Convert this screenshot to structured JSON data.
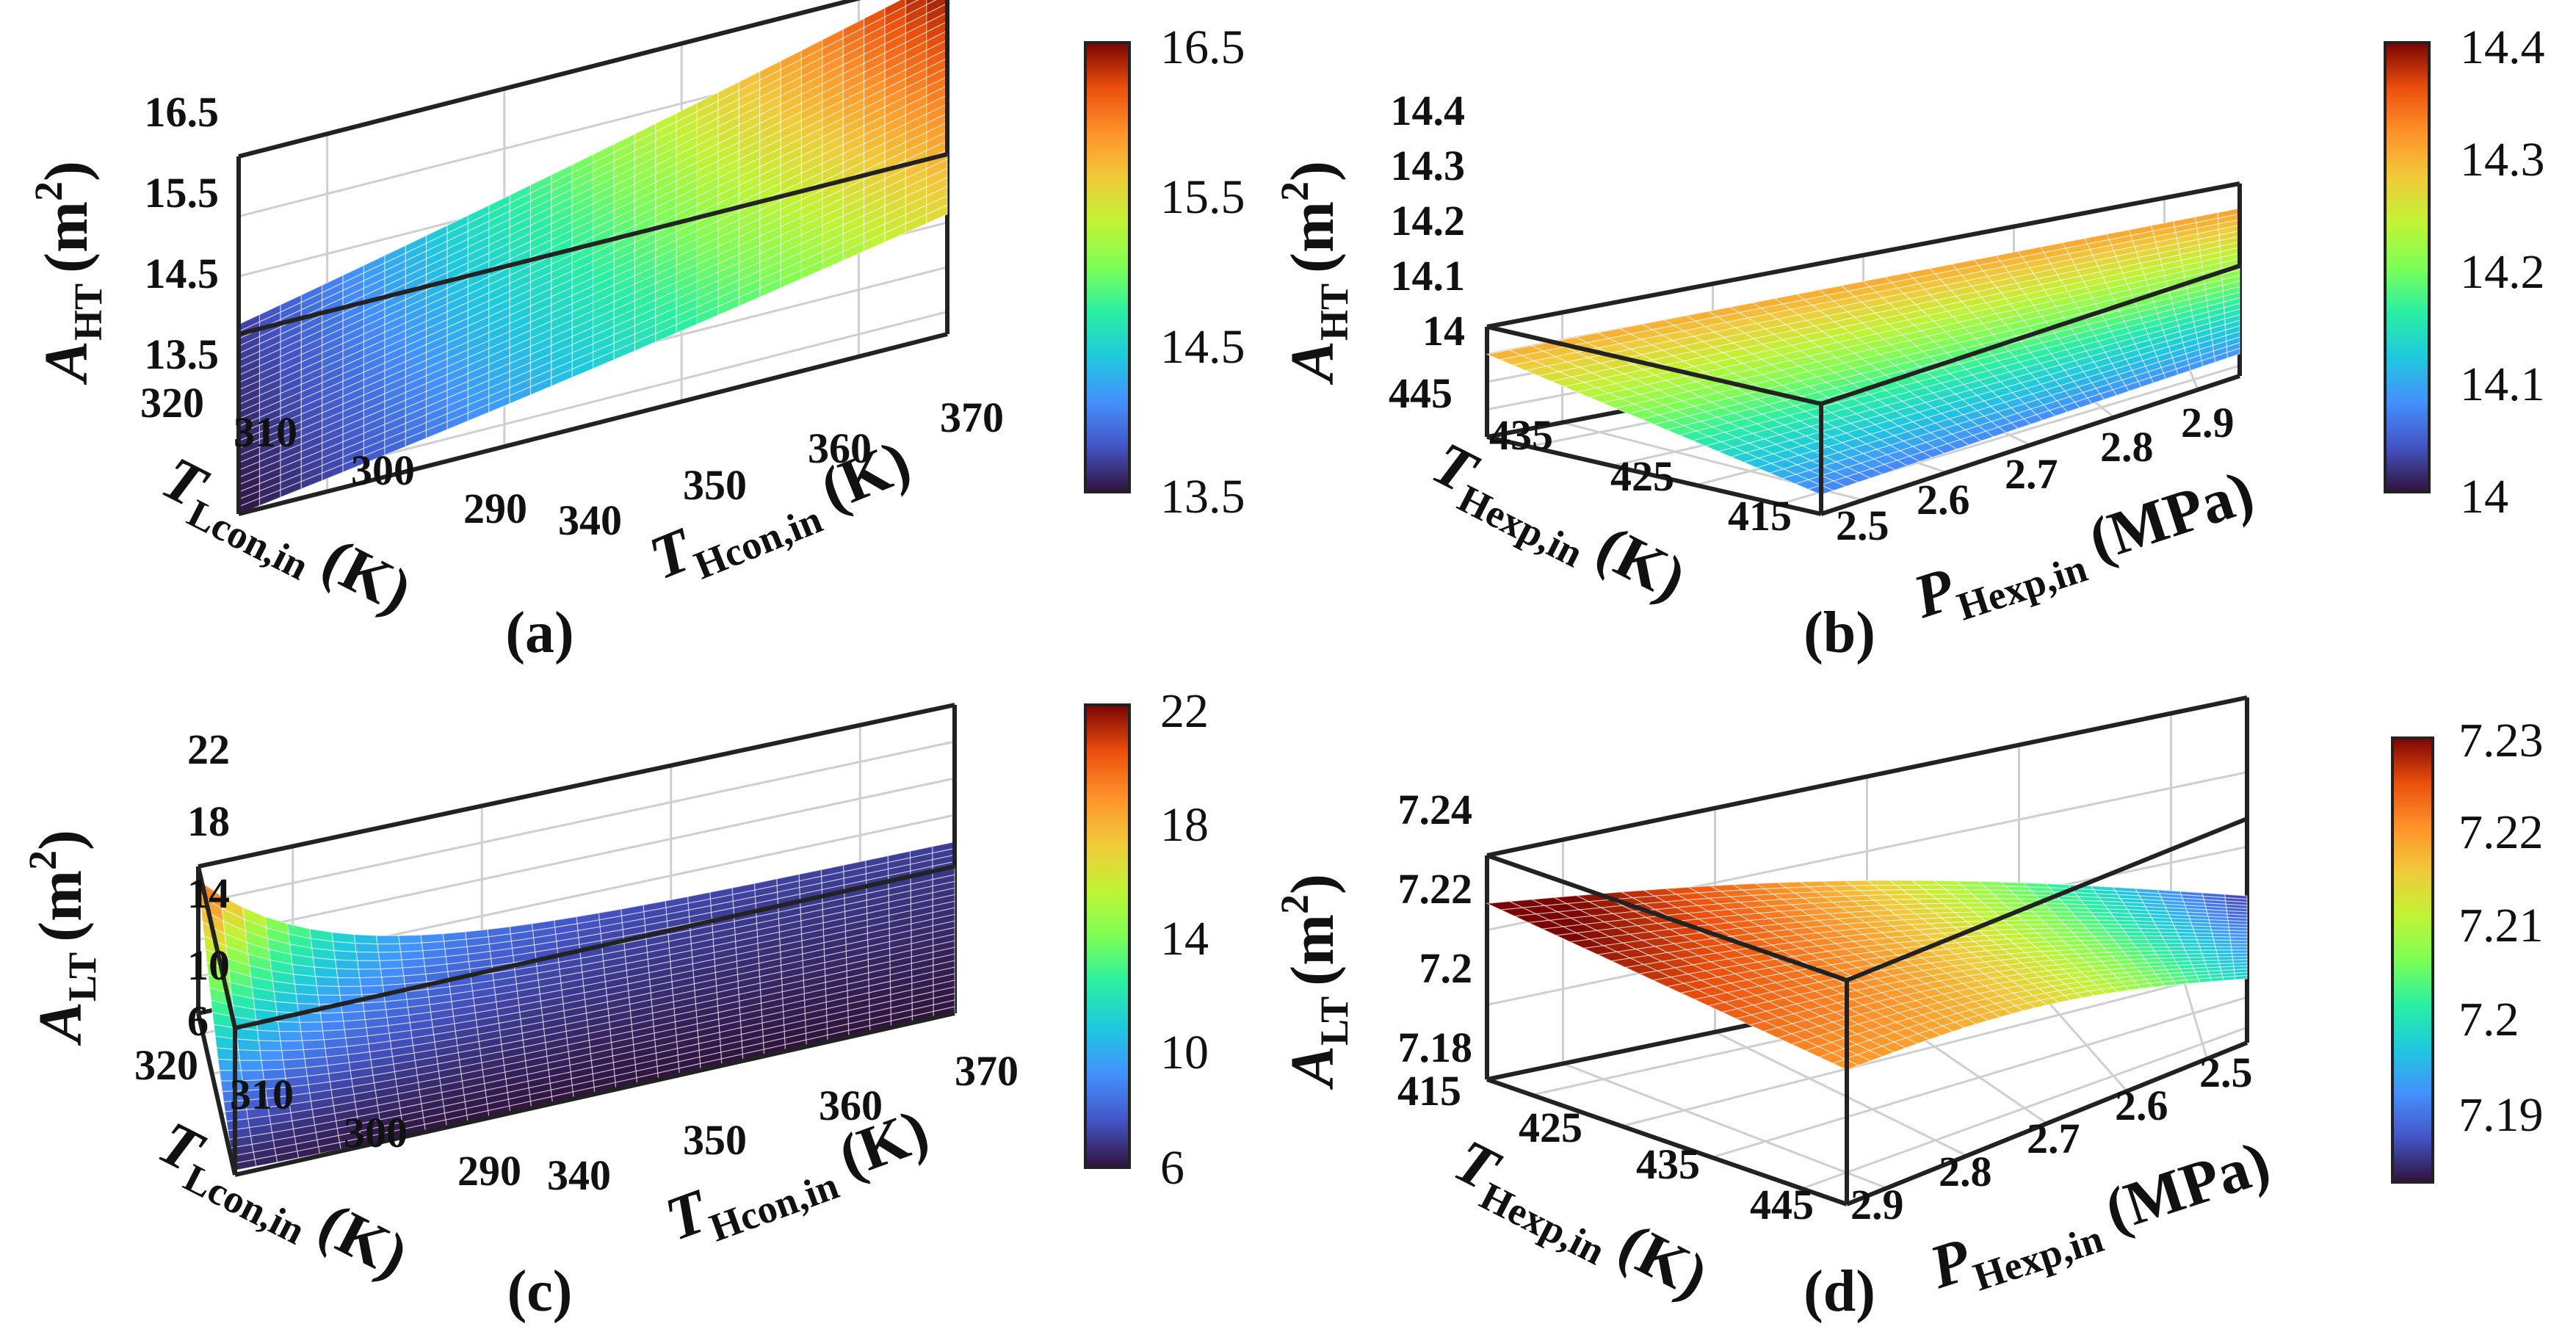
{
  "figure": {
    "panels": [
      "(a)",
      "(b)",
      "(c)",
      "(d)"
    ]
  },
  "chart_data": [
    {
      "type": "surface3d",
      "panel": "(a)",
      "title": "",
      "xlabel": "T",
      "xlabel_sub": "Hcon,in",
      "xlabel_unit": "(K)",
      "ylabel": "T",
      "ylabel_sub": "Lcon,in",
      "ylabel_unit": "(K)",
      "zlabel": "A",
      "zlabel_sub": "HT",
      "zlabel_unit": "(m",
      "zlabel_sup": "2",
      "zlabel_close": ")",
      "xlim": [
        335,
        372
      ],
      "ylim": [
        287,
        322
      ],
      "zlim": [
        13.5,
        16.5
      ],
      "xticks": [
        "340",
        "350",
        "360",
        "370"
      ],
      "yticks": [
        "320",
        "310",
        "300",
        "290"
      ],
      "zticks": [
        "13.5",
        "14.5",
        "15.5",
        "16.5"
      ],
      "surface_corners": {
        "x_low_y_low": 13.5,
        "x_low_y_high": 13.7,
        "x_high_y_low": 15.5,
        "x_high_y_high": 16.5
      },
      "colorbar": {
        "range": [
          13.5,
          16.5
        ],
        "ticks": [
          "16.5",
          "15.5",
          "14.5",
          "13.5"
        ]
      }
    },
    {
      "type": "surface3d",
      "panel": "(b)",
      "title": "",
      "xlabel": "P",
      "xlabel_sub": "Hexp,in",
      "xlabel_unit": "(MPa)",
      "ylabel": "T",
      "ylabel_sub": "Hexp,in",
      "ylabel_unit": "(K)",
      "zlabel": "A",
      "zlabel_sub": "HT",
      "zlabel_unit": "(m",
      "zlabel_sup": "2",
      "zlabel_close": ")",
      "xlim": [
        2.45,
        2.95
      ],
      "ylim": [
        412,
        448
      ],
      "zlim": [
        14.0,
        14.4
      ],
      "xticks": [
        "2.5",
        "2.6",
        "2.7",
        "2.8",
        "2.9"
      ],
      "yticks": [
        "445",
        "435",
        "425",
        "415"
      ],
      "zticks": [
        "14",
        "14.1",
        "14.2",
        "14.3",
        "14.4"
      ],
      "surface_corners": {
        "x_low_y_low": 14.07,
        "x_low_y_high": 14.3,
        "x_high_y_low": 14.08,
        "x_high_y_high": 14.31
      },
      "colorbar": {
        "range": [
          14.0,
          14.4
        ],
        "ticks": [
          "14.4",
          "14.3",
          "14.2",
          "14.1",
          "14"
        ]
      }
    },
    {
      "type": "surface3d",
      "panel": "(c)",
      "title": "",
      "xlabel": "T",
      "xlabel_sub": "Hcon,in",
      "xlabel_unit": "(K)",
      "ylabel": "T",
      "ylabel_sub": "Lcon,in",
      "ylabel_unit": "(K)",
      "zlabel": "A",
      "zlabel_sub": "LT",
      "zlabel_unit": "(m",
      "zlabel_sup": "2",
      "zlabel_close": ")",
      "xlim": [
        335,
        372
      ],
      "ylim": [
        287,
        322
      ],
      "zlim": [
        6,
        22
      ],
      "xticks": [
        "340",
        "350",
        "360",
        "370"
      ],
      "yticks": [
        "320",
        "310",
        "300",
        "290"
      ],
      "zticks": [
        "6",
        "10",
        "14",
        "18",
        "22"
      ],
      "surface_corners": {
        "x_low_y_low": 6.5,
        "x_low_y_high": 20.5,
        "x_high_y_low": 6.0,
        "x_high_y_high": 9.0
      },
      "colorbar": {
        "range": [
          6,
          22
        ],
        "ticks": [
          "22",
          "18",
          "14",
          "10",
          "6"
        ]
      }
    },
    {
      "type": "surface3d",
      "panel": "(d)",
      "title": "",
      "xlabel": "P",
      "xlabel_sub": "Hexp,in",
      "xlabel_unit": "(MPa)",
      "ylabel": "T",
      "ylabel_sub": "Hexp,in",
      "ylabel_unit": "(K)",
      "zlabel": "A",
      "zlabel_sub": "LT",
      "zlabel_unit": "(m",
      "zlabel_sup": "2",
      "zlabel_close": ")",
      "xlim": [
        2.45,
        2.95
      ],
      "ylim": [
        412,
        448
      ],
      "zlim": [
        7.18,
        7.25
      ],
      "xticks": [
        "2.9",
        "2.8",
        "2.7",
        "2.6",
        "2.5"
      ],
      "yticks": [
        "415",
        "425",
        "435",
        "445"
      ],
      "zticks": [
        "7.18",
        "7.2",
        "7.22",
        "7.24"
      ],
      "surface_corners": {
        "x_low_y_low": 7.222,
        "x_low_y_high": 7.235,
        "x_high_y_low": 7.2,
        "x_high_y_high": 7.188
      },
      "colorbar": {
        "range": [
          7.185,
          7.232
        ],
        "ticks": [
          "7.23",
          "7.22",
          "7.21",
          "7.2",
          "7.19"
        ]
      }
    }
  ]
}
